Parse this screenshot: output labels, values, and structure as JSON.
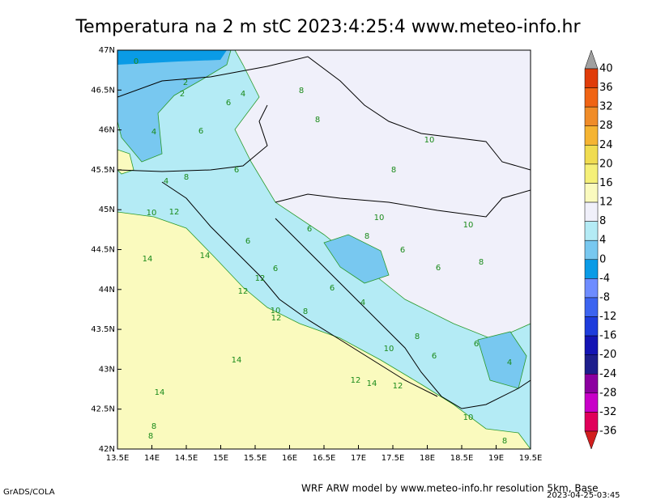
{
  "title": "Temperatura na 2 m stC 2023:4:25:4 www.meteo-info.hr",
  "map": {
    "lon_ticks": [
      "13.5E",
      "14E",
      "14.5E",
      "15E",
      "15.5E",
      "16E",
      "16.5E",
      "17E",
      "17.5E",
      "18E",
      "18.5E",
      "19E",
      "19.5E"
    ],
    "lat_ticks": [
      "42N",
      "42.5N",
      "43N",
      "43.5N",
      "44N",
      "44.5N",
      "45N",
      "45.5N",
      "46N",
      "46.5N",
      "47N"
    ],
    "contour_labels": [
      0,
      2,
      2,
      4,
      6,
      8,
      8,
      4,
      6,
      6,
      10,
      8,
      8,
      4,
      10,
      12,
      10,
      10,
      6,
      8,
      6,
      14,
      14,
      6,
      6,
      8,
      6,
      12,
      6,
      12,
      4,
      10,
      8,
      12,
      8,
      10,
      6,
      6,
      4,
      14,
      12,
      14,
      12,
      14,
      10,
      8,
      8,
      8
    ]
  },
  "colorbar": {
    "labels": [
      "40",
      "36",
      "32",
      "28",
      "24",
      "20",
      "16",
      "12",
      "8",
      "4",
      "0",
      "-4",
      "-8",
      "-12",
      "-16",
      "-20",
      "-24",
      "-28",
      "-32",
      "-36"
    ],
    "colors": [
      "#a0a0a0",
      "#e03c0a",
      "#f06414",
      "#f08c28",
      "#f5b432",
      "#f0dc50",
      "#f5f078",
      "#fafabe",
      "#f0f0fa",
      "#b4ebf5",
      "#78c8f0",
      "#0a9be6",
      "#6e8cff",
      "#3c64f0",
      "#1e3cdc",
      "#1414b4",
      "#1e1e8c",
      "#8c00a0",
      "#c800c8",
      "#e0005a",
      "#d21e1e"
    ]
  },
  "footer": {
    "left": "GrADS/COLA",
    "right": "WRF ARW model by www.meteo-info.hr resolution 5km, Base",
    "timestamp": "2023-04-25-03:45"
  }
}
